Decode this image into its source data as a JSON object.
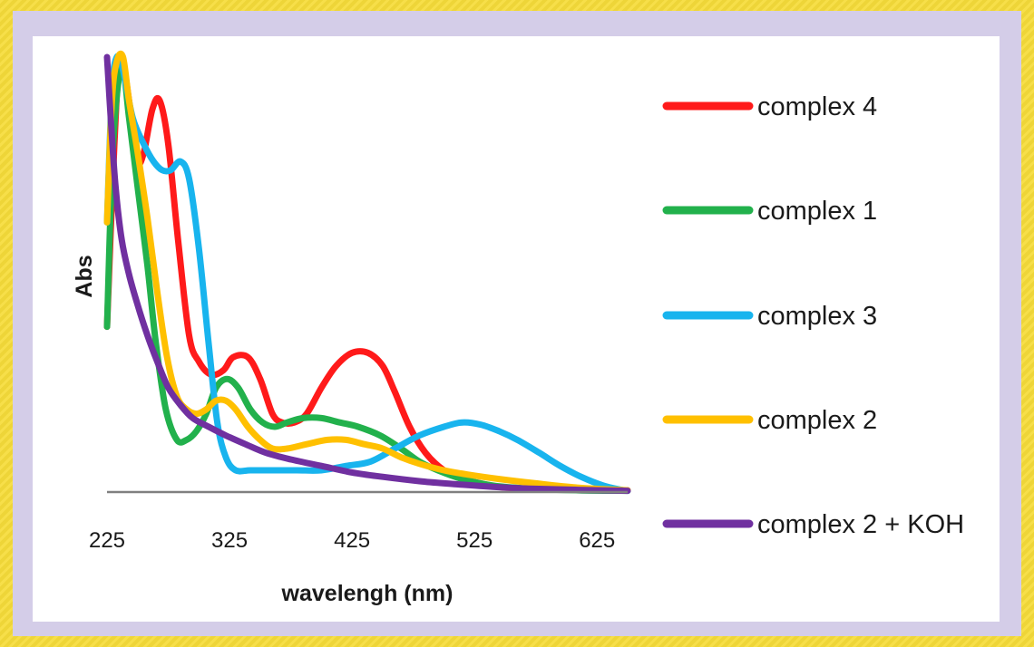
{
  "chart_data": {
    "type": "line",
    "title": "",
    "xlabel": "wavelengh (nm)",
    "ylabel": "Abs",
    "xlim": [
      225,
      650
    ],
    "ylim": [
      0,
      1.0
    ],
    "x_ticks": [
      "225",
      "325",
      "425",
      "525",
      "625"
    ],
    "y_ticks": [],
    "grid": false,
    "legend_position": "right",
    "colors": {
      "complex 4": "#ff1a1a",
      "complex 1": "#22b14c",
      "complex 3": "#18b4ee",
      "complex 2": "#ffc000",
      "complex 2 + KOH": "#7030a0",
      "axis": "#808080",
      "text": "#1a1a1a"
    },
    "series": [
      {
        "name": "complex 4",
        "points": [
          [
            225,
            0.38
          ],
          [
            231,
            0.8
          ],
          [
            236,
            1.0
          ],
          [
            245,
            0.86
          ],
          [
            250,
            0.76
          ],
          [
            255,
            0.78
          ],
          [
            262,
            0.88
          ],
          [
            268,
            0.9
          ],
          [
            275,
            0.8
          ],
          [
            283,
            0.58
          ],
          [
            292,
            0.36
          ],
          [
            300,
            0.3
          ],
          [
            310,
            0.27
          ],
          [
            320,
            0.28
          ],
          [
            328,
            0.31
          ],
          [
            340,
            0.31
          ],
          [
            350,
            0.26
          ],
          [
            360,
            0.18
          ],
          [
            368,
            0.16
          ],
          [
            378,
            0.16
          ],
          [
            388,
            0.18
          ],
          [
            400,
            0.24
          ],
          [
            412,
            0.29
          ],
          [
            425,
            0.32
          ],
          [
            438,
            0.32
          ],
          [
            450,
            0.29
          ],
          [
            460,
            0.23
          ],
          [
            472,
            0.15
          ],
          [
            485,
            0.09
          ],
          [
            500,
            0.05
          ],
          [
            515,
            0.03
          ],
          [
            530,
            0.02
          ],
          [
            550,
            0.01
          ],
          [
            580,
            0.008
          ],
          [
            620,
            0.005
          ],
          [
            650,
            0.004
          ]
        ]
      },
      {
        "name": "complex 1",
        "points": [
          [
            225,
            0.38
          ],
          [
            230,
            0.8
          ],
          [
            237,
            0.98
          ],
          [
            243,
            0.86
          ],
          [
            250,
            0.7
          ],
          [
            258,
            0.52
          ],
          [
            265,
            0.34
          ],
          [
            273,
            0.19
          ],
          [
            282,
            0.12
          ],
          [
            290,
            0.12
          ],
          [
            298,
            0.14
          ],
          [
            306,
            0.18
          ],
          [
            314,
            0.24
          ],
          [
            323,
            0.26
          ],
          [
            332,
            0.24
          ],
          [
            342,
            0.19
          ],
          [
            352,
            0.16
          ],
          [
            362,
            0.15
          ],
          [
            372,
            0.16
          ],
          [
            385,
            0.17
          ],
          [
            400,
            0.17
          ],
          [
            415,
            0.16
          ],
          [
            430,
            0.15
          ],
          [
            448,
            0.13
          ],
          [
            465,
            0.1
          ],
          [
            480,
            0.07
          ],
          [
            495,
            0.05
          ],
          [
            515,
            0.03
          ],
          [
            540,
            0.015
          ],
          [
            570,
            0.008
          ],
          [
            610,
            0.004
          ],
          [
            650,
            0.003
          ]
        ]
      },
      {
        "name": "complex 3",
        "points": [
          [
            225,
            0.62
          ],
          [
            229,
            0.92
          ],
          [
            233,
            1.0
          ],
          [
            238,
            0.97
          ],
          [
            246,
            0.86
          ],
          [
            255,
            0.8
          ],
          [
            263,
            0.76
          ],
          [
            270,
            0.74
          ],
          [
            277,
            0.74
          ],
          [
            285,
            0.76
          ],
          [
            292,
            0.72
          ],
          [
            300,
            0.56
          ],
          [
            308,
            0.34
          ],
          [
            315,
            0.16
          ],
          [
            322,
            0.08
          ],
          [
            330,
            0.05
          ],
          [
            342,
            0.05
          ],
          [
            360,
            0.05
          ],
          [
            380,
            0.05
          ],
          [
            400,
            0.05
          ],
          [
            420,
            0.06
          ],
          [
            440,
            0.07
          ],
          [
            460,
            0.1
          ],
          [
            480,
            0.13
          ],
          [
            500,
            0.15
          ],
          [
            515,
            0.16
          ],
          [
            530,
            0.155
          ],
          [
            545,
            0.14
          ],
          [
            560,
            0.12
          ],
          [
            578,
            0.09
          ],
          [
            595,
            0.06
          ],
          [
            612,
            0.035
          ],
          [
            630,
            0.015
          ],
          [
            645,
            0.005
          ],
          [
            650,
            0.003
          ]
        ]
      },
      {
        "name": "complex 2",
        "points": [
          [
            225,
            0.62
          ],
          [
            229,
            0.9
          ],
          [
            233,
            0.99
          ],
          [
            238,
            1.0
          ],
          [
            243,
            0.9
          ],
          [
            250,
            0.78
          ],
          [
            258,
            0.63
          ],
          [
            266,
            0.46
          ],
          [
            274,
            0.31
          ],
          [
            282,
            0.22
          ],
          [
            290,
            0.19
          ],
          [
            298,
            0.18
          ],
          [
            306,
            0.19
          ],
          [
            314,
            0.21
          ],
          [
            322,
            0.21
          ],
          [
            330,
            0.19
          ],
          [
            340,
            0.15
          ],
          [
            350,
            0.12
          ],
          [
            360,
            0.1
          ],
          [
            372,
            0.1
          ],
          [
            388,
            0.11
          ],
          [
            405,
            0.12
          ],
          [
            420,
            0.12
          ],
          [
            435,
            0.11
          ],
          [
            450,
            0.1
          ],
          [
            465,
            0.08
          ],
          [
            480,
            0.065
          ],
          [
            500,
            0.05
          ],
          [
            520,
            0.04
          ],
          [
            545,
            0.03
          ],
          [
            575,
            0.02
          ],
          [
            610,
            0.01
          ],
          [
            650,
            0.004
          ]
        ]
      },
      {
        "name": "complex 2 + KOH",
        "points": [
          [
            225,
            1.0
          ],
          [
            228,
            0.86
          ],
          [
            232,
            0.7
          ],
          [
            237,
            0.58
          ],
          [
            243,
            0.5
          ],
          [
            250,
            0.43
          ],
          [
            258,
            0.36
          ],
          [
            266,
            0.3
          ],
          [
            275,
            0.24
          ],
          [
            285,
            0.2
          ],
          [
            295,
            0.17
          ],
          [
            308,
            0.15
          ],
          [
            322,
            0.13
          ],
          [
            338,
            0.11
          ],
          [
            355,
            0.09
          ],
          [
            375,
            0.075
          ],
          [
            400,
            0.06
          ],
          [
            425,
            0.045
          ],
          [
            450,
            0.035
          ],
          [
            480,
            0.025
          ],
          [
            510,
            0.018
          ],
          [
            540,
            0.012
          ],
          [
            570,
            0.008
          ],
          [
            610,
            0.005
          ],
          [
            650,
            0.003
          ]
        ]
      }
    ]
  }
}
